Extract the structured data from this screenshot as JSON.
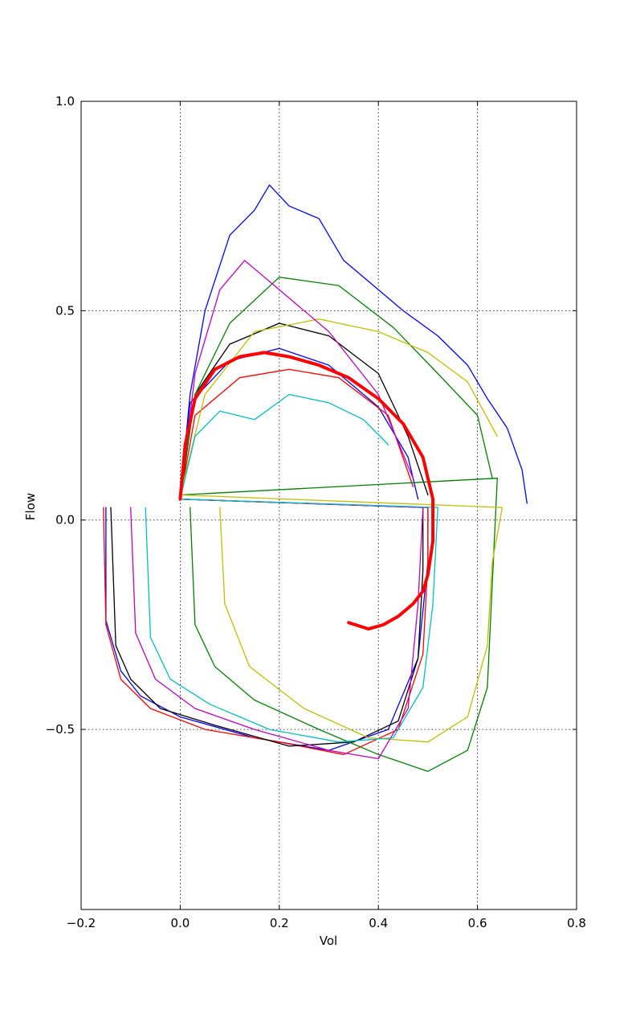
{
  "chart_data": {
    "type": "line",
    "title": "",
    "xlabel": "Vol",
    "ylabel": "Flow",
    "xlim": [
      -0.2,
      0.8
    ],
    "ylim": [
      -0.93,
      1.0
    ],
    "grid": true,
    "legend": "none",
    "xticks": [
      -0.2,
      0.0,
      0.2,
      0.4,
      0.6,
      0.8
    ],
    "xtick_labels": [
      "−0.2",
      "0.0",
      "0.2",
      "0.4",
      "0.6",
      "0.8"
    ],
    "yticks": [
      -0.5,
      0.0,
      0.5,
      1.0
    ],
    "ytick_labels": [
      "−0.5",
      "0.0",
      "0.5",
      "1.0"
    ],
    "ensemble_note_colors": [
      "#0000ff",
      "#008000",
      "#ff0000",
      "#00bfbf",
      "#bf00bf",
      "#bfbf00",
      "#000000"
    ],
    "series": [
      {
        "color": "#0000ff",
        "x": [
          -0.15,
          -0.15,
          -0.12,
          -0.08,
          0.0,
          0.15,
          0.3,
          0.42,
          0.48,
          0.5,
          0.5,
          0.0,
          0.02,
          0.1,
          0.2,
          0.3,
          0.4,
          0.46,
          0.48
        ],
        "y": [
          0.03,
          -0.24,
          -0.36,
          -0.42,
          -0.47,
          -0.52,
          -0.55,
          -0.5,
          -0.33,
          -0.1,
          0.03,
          0.05,
          0.28,
          0.38,
          0.41,
          0.37,
          0.27,
          0.15,
          0.05
        ]
      },
      {
        "color": "#ff0000",
        "x": [
          -0.155,
          -0.15,
          -0.12,
          -0.06,
          0.05,
          0.2,
          0.33,
          0.44,
          0.49,
          0.5,
          0.5,
          0.0,
          0.03,
          0.12,
          0.22,
          0.32,
          0.42,
          0.47
        ],
        "y": [
          0.03,
          -0.25,
          -0.38,
          -0.45,
          -0.5,
          -0.53,
          -0.56,
          -0.5,
          -0.32,
          -0.1,
          0.03,
          0.05,
          0.25,
          0.34,
          0.36,
          0.34,
          0.25,
          0.08
        ]
      },
      {
        "color": "#000000",
        "x": [
          -0.14,
          -0.13,
          -0.1,
          -0.04,
          0.07,
          0.22,
          0.35,
          0.44,
          0.48,
          0.49,
          0.49,
          0.0,
          0.03,
          0.1,
          0.2,
          0.3,
          0.4,
          0.46,
          0.5
        ],
        "y": [
          0.03,
          -0.3,
          -0.38,
          -0.45,
          -0.49,
          -0.54,
          -0.53,
          -0.48,
          -0.33,
          -0.12,
          0.03,
          0.05,
          0.3,
          0.42,
          0.47,
          0.44,
          0.35,
          0.2,
          0.06
        ]
      },
      {
        "color": "#008000",
        "x": [
          0.02,
          0.03,
          0.07,
          0.15,
          0.28,
          0.4,
          0.5,
          0.58,
          0.62,
          0.63,
          0.64,
          0.0,
          0.03,
          0.1,
          0.2,
          0.32,
          0.43,
          0.52,
          0.6,
          0.63
        ],
        "y": [
          0.03,
          -0.25,
          -0.35,
          -0.43,
          -0.5,
          -0.56,
          -0.6,
          -0.55,
          -0.4,
          -0.15,
          0.1,
          0.06,
          0.3,
          0.47,
          0.58,
          0.56,
          0.46,
          0.35,
          0.25,
          0.1
        ]
      },
      {
        "color": "#0000ff",
        "x": [
          0.0,
          0.02,
          0.05,
          0.1,
          0.15,
          0.18,
          0.22,
          0.28,
          0.33,
          0.38,
          0.45,
          0.52,
          0.58,
          0.62,
          0.66,
          0.69,
          0.7
        ],
        "y": [
          0.05,
          0.3,
          0.5,
          0.68,
          0.74,
          0.8,
          0.75,
          0.72,
          0.62,
          0.57,
          0.5,
          0.44,
          0.37,
          0.29,
          0.22,
          0.12,
          0.04
        ]
      },
      {
        "color": "#bfbf00",
        "x": [
          0.08,
          0.09,
          0.14,
          0.25,
          0.38,
          0.5,
          0.58,
          0.62,
          0.63,
          0.65,
          0.0,
          0.05,
          0.15,
          0.28,
          0.4,
          0.5,
          0.58,
          0.64
        ],
        "y": [
          0.03,
          -0.2,
          -0.35,
          -0.45,
          -0.52,
          -0.53,
          -0.47,
          -0.3,
          -0.1,
          0.03,
          0.06,
          0.3,
          0.45,
          0.48,
          0.45,
          0.4,
          0.33,
          0.2
        ]
      },
      {
        "color": "#bf00bf",
        "x": [
          -0.1,
          -0.09,
          -0.05,
          0.03,
          0.15,
          0.3,
          0.4,
          0.46,
          0.48,
          0.49,
          0.0,
          0.03,
          0.08,
          0.13,
          0.2,
          0.3,
          0.4,
          0.47
        ],
        "y": [
          0.03,
          -0.27,
          -0.38,
          -0.45,
          -0.5,
          -0.55,
          -0.57,
          -0.45,
          -0.2,
          0.03,
          0.05,
          0.35,
          0.55,
          0.62,
          0.55,
          0.45,
          0.3,
          0.1
        ]
      },
      {
        "color": "#00bfbf",
        "x": [
          -0.07,
          -0.06,
          -0.02,
          0.06,
          0.18,
          0.32,
          0.43,
          0.49,
          0.51,
          0.52,
          0.0,
          0.03,
          0.08,
          0.15,
          0.22,
          0.3,
          0.37,
          0.42
        ],
        "y": [
          0.03,
          -0.28,
          -0.38,
          -0.44,
          -0.5,
          -0.53,
          -0.52,
          -0.4,
          -0.2,
          0.03,
          0.05,
          0.2,
          0.26,
          0.24,
          0.3,
          0.28,
          0.24,
          0.18
        ]
      },
      {
        "color": "#ff0000",
        "x": [
          0.0,
          0.01,
          0.03,
          0.07,
          0.12,
          0.17,
          0.22,
          0.28,
          0.34,
          0.4,
          0.45,
          0.49,
          0.51,
          0.51,
          0.5,
          0.49,
          0.47,
          0.44,
          0.41,
          0.38,
          0.34
        ],
        "y": [
          0.05,
          0.18,
          0.29,
          0.36,
          0.39,
          0.4,
          0.39,
          0.37,
          0.34,
          0.29,
          0.23,
          0.15,
          0.05,
          -0.05,
          -0.13,
          -0.17,
          -0.2,
          -0.23,
          -0.25,
          -0.26,
          -0.245
        ],
        "emphasis": true
      }
    ]
  }
}
